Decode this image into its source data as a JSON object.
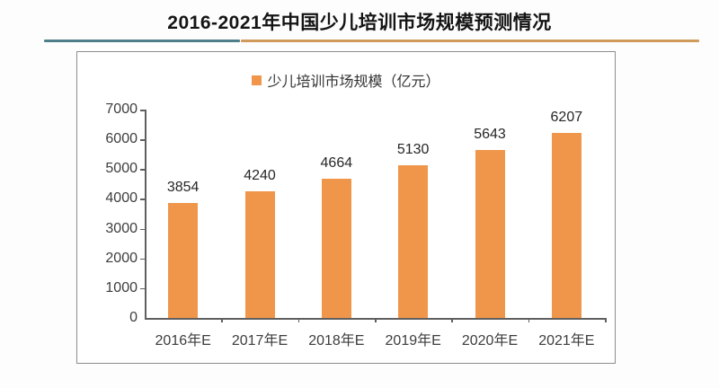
{
  "title": "2016-2021年中国少儿培训市场规模预测情况",
  "divider": {
    "left_color": "#4e7f8a",
    "right_color": "#cf9a5a"
  },
  "chart_data": {
    "type": "bar",
    "title": "2016-2021年中国少儿培训市场规模预测情况",
    "legend": "少儿培训市场规模（亿元）",
    "legend_position": "top-center",
    "categories": [
      "2016年E",
      "2017年E",
      "2018年E",
      "2019年E",
      "2020年E",
      "2021年E"
    ],
    "values": [
      3854,
      4240,
      4664,
      5130,
      5643,
      6207
    ],
    "data_labels": [
      3854,
      4240,
      4664,
      5130,
      5643,
      6207
    ],
    "xlabel": "",
    "ylabel": "",
    "ylim": [
      0,
      7000
    ],
    "yticks": [
      0,
      1000,
      2000,
      3000,
      4000,
      5000,
      6000,
      7000
    ],
    "grid": false,
    "bar_color": "#F0964B",
    "axis_color": "#5f5f5f",
    "label_color": "#3d3d3d"
  }
}
